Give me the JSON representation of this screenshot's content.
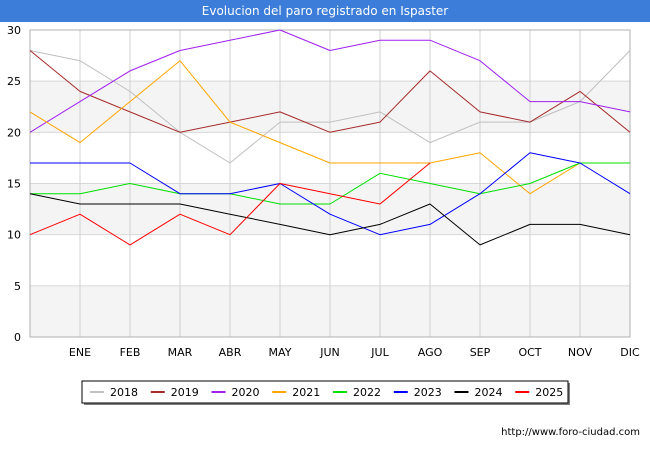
{
  "header": {
    "title": "Evolucion del paro registrado en Ispaster"
  },
  "footer": {
    "url": "http://www.foro-ciudad.com"
  },
  "chart_data": {
    "type": "line",
    "title": "Evolucion del paro registrado en Ispaster",
    "xlabel": "",
    "ylabel": "",
    "categories": [
      "",
      "ENE",
      "FEB",
      "MAR",
      "ABR",
      "MAY",
      "JUN",
      "JUL",
      "AGO",
      "SEP",
      "OCT",
      "NOV",
      "DIC"
    ],
    "yticks": [
      0,
      5,
      10,
      15,
      20,
      25,
      30
    ],
    "ylim": [
      0,
      30
    ],
    "grid": true,
    "legend_position": "bottom",
    "series": [
      {
        "name": "2018",
        "color": "#c0c0c0",
        "values": [
          28,
          27,
          24,
          20,
          17,
          21,
          21,
          22,
          19,
          21,
          21,
          23,
          28
        ]
      },
      {
        "name": "2019",
        "color": "#a52a2a",
        "values": [
          28,
          24,
          22,
          20,
          21,
          22,
          20,
          21,
          26,
          22,
          21,
          24,
          20
        ]
      },
      {
        "name": "2020",
        "color": "#a020f0",
        "values": [
          20,
          23,
          26,
          28,
          29,
          30,
          28,
          29,
          29,
          27,
          23,
          23,
          22
        ]
      },
      {
        "name": "2021",
        "color": "#ffa500",
        "values": [
          22,
          19,
          23,
          27,
          21,
          19,
          17,
          17,
          17,
          18,
          14,
          17,
          null
        ]
      },
      {
        "name": "2022",
        "color": "#00e000",
        "values": [
          14,
          14,
          15,
          14,
          14,
          13,
          13,
          16,
          15,
          14,
          15,
          17,
          17
        ]
      },
      {
        "name": "2023",
        "color": "#0000ff",
        "values": [
          17,
          17,
          17,
          14,
          14,
          15,
          12,
          10,
          11,
          14,
          18,
          17,
          14
        ]
      },
      {
        "name": "2024",
        "color": "#000000",
        "values": [
          14,
          13,
          13,
          13,
          12,
          11,
          10,
          11,
          13,
          9,
          11,
          11,
          10
        ]
      },
      {
        "name": "2025",
        "color": "#ff0000",
        "values": [
          10,
          12,
          9,
          12,
          10,
          15,
          14,
          13,
          17,
          null,
          null,
          null,
          null
        ]
      }
    ]
  }
}
